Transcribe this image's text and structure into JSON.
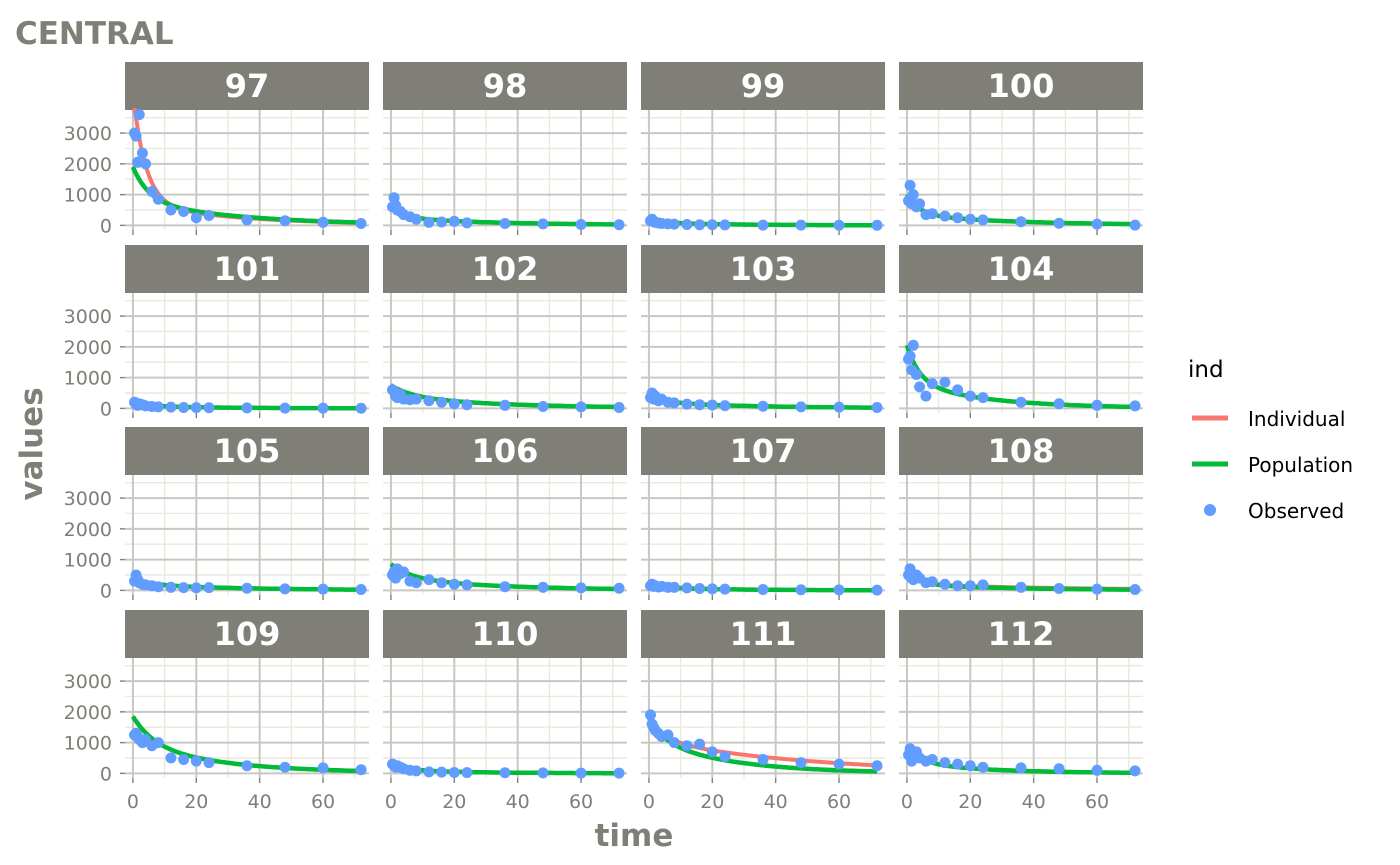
{
  "chart_data": {
    "type": "scatter",
    "title": "CENTRAL",
    "xlabel": "time",
    "ylabel": "values",
    "xlim": [
      -2.5,
      74.5
    ],
    "ylim": [
      -150,
      3750
    ],
    "x_ticks": [
      0,
      20,
      40,
      60
    ],
    "y_ticks": [
      0,
      1000,
      2000,
      3000
    ],
    "grid": true,
    "legend": {
      "title": "ind",
      "position": "right",
      "entries": [
        {
          "label": "Individual",
          "kind": "line",
          "color": "#F8766D"
        },
        {
          "label": "Population",
          "kind": "line",
          "color": "#00BA38"
        },
        {
          "label": "Observed",
          "kind": "point",
          "color": "#619CFF"
        }
      ]
    },
    "time_points": [
      0.5,
      1,
      1.5,
      2,
      3,
      4,
      6,
      8,
      12,
      16,
      20,
      24,
      36,
      48,
      60,
      72
    ],
    "panels": [
      {
        "id": "97",
        "observed": [
          3000,
          2900,
          2050,
          3600,
          2350,
          2000,
          1100,
          850,
          500,
          450,
          250,
          320,
          180,
          150,
          100,
          60
        ],
        "individual": {
          "c0": 3600,
          "k": 0.25,
          "c1": 700,
          "k2": 0.03
        },
        "population": {
          "c0": 1100,
          "k": 0.2,
          "c1": 800,
          "k2": 0.03
        }
      },
      {
        "id": "98",
        "observed": [
          600,
          900,
          650,
          500,
          450,
          350,
          280,
          200,
          100,
          110,
          130,
          80,
          60,
          50,
          30,
          20
        ],
        "individual": {
          "c0": 450,
          "k": 0.25,
          "c1": 250,
          "k2": 0.03
        },
        "population": {
          "c0": 450,
          "k": 0.25,
          "c1": 250,
          "k2": 0.03
        }
      },
      {
        "id": "99",
        "observed": [
          150,
          200,
          120,
          100,
          80,
          60,
          50,
          40,
          30,
          20,
          20,
          15,
          10,
          10,
          5,
          5
        ],
        "individual": {
          "c0": 100,
          "k": 0.2,
          "c1": 90,
          "k2": 0.04
        },
        "population": {
          "c0": 100,
          "k": 0.2,
          "c1": 90,
          "k2": 0.04
        }
      },
      {
        "id": "100",
        "observed": [
          800,
          1300,
          700,
          1000,
          600,
          700,
          350,
          380,
          300,
          250,
          200,
          180,
          120,
          70,
          40,
          10
        ],
        "individual": {
          "c0": 650,
          "k": 0.25,
          "c1": 350,
          "k2": 0.03
        },
        "population": {
          "c0": 650,
          "k": 0.25,
          "c1": 350,
          "k2": 0.03
        }
      },
      {
        "id": "101",
        "observed": [
          200,
          130,
          100,
          150,
          120,
          80,
          60,
          50,
          40,
          30,
          25,
          20,
          15,
          10,
          8,
          5
        ],
        "individual": {
          "c0": 120,
          "k": 0.2,
          "c1": 80,
          "k2": 0.04
        },
        "population": {
          "c0": 120,
          "k": 0.2,
          "c1": 80,
          "k2": 0.04
        }
      },
      {
        "id": "102",
        "observed": [
          600,
          550,
          400,
          350,
          450,
          300,
          280,
          300,
          250,
          200,
          150,
          120,
          100,
          60,
          50,
          30
        ],
        "individual": {
          "c0": 350,
          "k": 0.15,
          "c1": 400,
          "k2": 0.03
        },
        "population": {
          "c0": 350,
          "k": 0.15,
          "c1": 400,
          "k2": 0.03
        }
      },
      {
        "id": "103",
        "observed": [
          350,
          500,
          300,
          400,
          250,
          300,
          200,
          180,
          140,
          120,
          110,
          90,
          70,
          50,
          40,
          30
        ],
        "individual": {
          "c0": 250,
          "k": 0.2,
          "c1": 200,
          "k2": 0.03
        },
        "population": {
          "c0": 250,
          "k": 0.2,
          "c1": 200,
          "k2": 0.03
        }
      },
      {
        "id": "104",
        "observed": [
          1600,
          1700,
          1250,
          2050,
          1100,
          700,
          400,
          800,
          850,
          600,
          400,
          350,
          200,
          150,
          100,
          80
        ],
        "individual": {
          "c0": 1200,
          "k": 0.25,
          "c1": 850,
          "k2": 0.04
        },
        "population": {
          "c0": 1200,
          "k": 0.25,
          "c1": 850,
          "k2": 0.04
        }
      },
      {
        "id": "105",
        "observed": [
          300,
          500,
          350,
          250,
          200,
          180,
          150,
          120,
          100,
          90,
          80,
          90,
          70,
          50,
          40,
          30
        ],
        "individual": {
          "c0": 200,
          "k": 0.2,
          "c1": 200,
          "k2": 0.03
        },
        "population": {
          "c0": 200,
          "k": 0.2,
          "c1": 200,
          "k2": 0.03
        }
      },
      {
        "id": "106",
        "observed": [
          500,
          600,
          400,
          700,
          550,
          600,
          300,
          250,
          350,
          250,
          200,
          180,
          120,
          100,
          80,
          70
        ],
        "individual": {
          "c0": 450,
          "k": 0.15,
          "c1": 400,
          "k2": 0.03
        },
        "population": {
          "c0": 450,
          "k": 0.15,
          "c1": 400,
          "k2": 0.03
        }
      },
      {
        "id": "107",
        "observed": [
          150,
          200,
          130,
          150,
          110,
          130,
          100,
          100,
          80,
          60,
          50,
          40,
          30,
          20,
          15,
          10
        ],
        "individual": {
          "c0": 120,
          "k": 0.2,
          "c1": 90,
          "k2": 0.04
        },
        "population": {
          "c0": 120,
          "k": 0.2,
          "c1": 90,
          "k2": 0.04
        }
      },
      {
        "id": "108",
        "observed": [
          500,
          700,
          400,
          350,
          500,
          400,
          250,
          280,
          200,
          150,
          150,
          180,
          100,
          60,
          40,
          30
        ],
        "individual": {
          "c0": 400,
          "k": 0.25,
          "c1": 200,
          "k2": 0.02
        },
        "population": {
          "c0": 400,
          "k": 0.25,
          "c1": 200,
          "k2": 0.03
        }
      },
      {
        "id": "109",
        "observed": [
          1250,
          1300,
          1200,
          1100,
          1000,
          1100,
          900,
          1000,
          500,
          450,
          400,
          350,
          250,
          200,
          180,
          120
        ],
        "individual": {
          "c0": 900,
          "k": 0.15,
          "c1": 950,
          "k2": 0.035
        },
        "population": {
          "c0": 900,
          "k": 0.15,
          "c1": 950,
          "k2": 0.035
        }
      },
      {
        "id": "110",
        "observed": [
          300,
          250,
          200,
          250,
          200,
          150,
          100,
          80,
          50,
          40,
          30,
          25,
          20,
          15,
          10,
          10
        ],
        "individual": {
          "c0": 200,
          "k": 0.2,
          "c1": 110,
          "k2": 0.04
        },
        "population": {
          "c0": 200,
          "k": 0.2,
          "c1": 110,
          "k2": 0.04
        }
      },
      {
        "id": "111",
        "observed": [
          1900,
          1600,
          1500,
          1400,
          1300,
          1200,
          1250,
          1000,
          900,
          950,
          700,
          550,
          450,
          350,
          300,
          250
        ],
        "individual": {
          "c0": 700,
          "k": 0.2,
          "c1": 1100,
          "k2": 0.02
        },
        "population": {
          "c0": 700,
          "k": 0.2,
          "c1": 1100,
          "k2": 0.04
        }
      },
      {
        "id": "112",
        "observed": [
          600,
          800,
          400,
          500,
          700,
          500,
          400,
          450,
          350,
          300,
          250,
          200,
          180,
          150,
          100,
          80
        ],
        "individual": {
          "c0": 450,
          "k": 0.2,
          "c1": 350,
          "k2": 0.04
        },
        "population": {
          "c0": 450,
          "k": 0.2,
          "c1": 350,
          "k2": 0.04
        }
      }
    ]
  }
}
